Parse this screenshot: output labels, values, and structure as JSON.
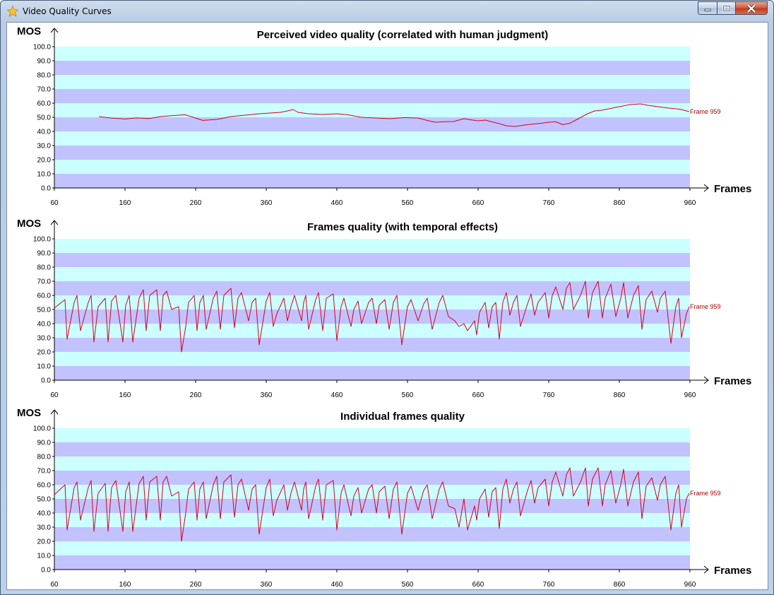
{
  "window": {
    "title": "Video Quality Curves",
    "icon": "star-icon"
  },
  "colors": {
    "line": "#d8001c",
    "band_light": "#ccffff",
    "band_dark": "#c2c2ff",
    "label": "#b00000"
  },
  "chart_data": [
    {
      "type": "line",
      "title": "Perceived video quality (correlated with human judgment)",
      "ylabel": "MOS",
      "xlabel": "Frames",
      "ylim": [
        0,
        100
      ],
      "xlim": [
        60,
        960
      ],
      "yticks": [
        "0.0",
        "10.0",
        "20.0",
        "30.0",
        "40.0",
        "50.0",
        "60.0",
        "70.0",
        "80.0",
        "90.0",
        "100.0"
      ],
      "xticks": [
        "60",
        "160",
        "260",
        "360",
        "460",
        "560",
        "660",
        "760",
        "860",
        "960"
      ],
      "end_label": "Frame 959",
      "series": [
        {
          "x": [
            123,
            140,
            160,
            175,
            195,
            210,
            230,
            245,
            260,
            270,
            290,
            310,
            330,
            350,
            365,
            380,
            390,
            398,
            405,
            420,
            440,
            460,
            475,
            495,
            515,
            535,
            555,
            575,
            590,
            600,
            610,
            625,
            640,
            650,
            660,
            670,
            690,
            700,
            712,
            730,
            750,
            760,
            770,
            780,
            790,
            800,
            815,
            825,
            835,
            850,
            860,
            875,
            890,
            900,
            915,
            930,
            945,
            959
          ],
          "y": [
            50.5,
            49.5,
            48.8,
            49.5,
            49.2,
            50.5,
            51.3,
            51.8,
            49.5,
            47.8,
            48.5,
            50.5,
            51.5,
            52.5,
            53.0,
            53.5,
            54.5,
            55.5,
            53.5,
            52.5,
            52.0,
            52.5,
            51.8,
            50.0,
            49.5,
            49.0,
            49.8,
            49.5,
            47.5,
            46.5,
            46.8,
            47.0,
            49.0,
            48.2,
            47.5,
            48.0,
            45.5,
            44.0,
            43.5,
            44.8,
            45.8,
            46.5,
            46.8,
            44.8,
            45.8,
            48.5,
            52.5,
            54.5,
            55.0,
            56.5,
            57.5,
            59.0,
            59.5,
            58.5,
            57.5,
            56.5,
            55.8,
            54.0
          ]
        }
      ]
    },
    {
      "type": "line",
      "title": "Frames quality (with temporal effects)",
      "ylabel": "MOS",
      "xlabel": "Frames",
      "ylim": [
        0,
        100
      ],
      "xlim": [
        60,
        960
      ],
      "yticks": [
        "0.0",
        "10.0",
        "20.0",
        "30.0",
        "40.0",
        "50.0",
        "60.0",
        "70.0",
        "80.0",
        "90.0",
        "100.0"
      ],
      "xticks": [
        "60",
        "160",
        "260",
        "360",
        "460",
        "560",
        "660",
        "760",
        "860",
        "960"
      ],
      "end_label": "Frame 959",
      "series": [
        {
          "x": [
            60,
            75,
            78,
            88,
            92,
            97,
            108,
            112,
            116,
            122,
            132,
            136,
            141,
            147,
            157,
            161,
            166,
            171,
            180,
            186,
            190,
            195,
            205,
            210,
            214,
            219,
            226,
            236,
            240,
            246,
            250,
            258,
            262,
            266,
            271,
            275,
            285,
            290,
            295,
            300,
            310,
            315,
            320,
            325,
            335,
            340,
            345,
            350,
            360,
            365,
            370,
            375,
            385,
            390,
            395,
            400,
            410,
            413,
            416,
            420,
            430,
            434,
            440,
            445,
            455,
            460,
            466,
            470,
            480,
            484,
            490,
            495,
            505,
            510,
            516,
            520,
            528,
            534,
            540,
            545,
            552,
            560,
            565,
            575,
            583,
            588,
            595,
            605,
            610,
            618,
            627,
            633,
            640,
            645,
            655,
            658,
            662,
            670,
            675,
            680,
            685,
            690,
            695,
            700,
            705,
            710,
            715,
            720,
            730,
            735,
            740,
            745,
            755,
            760,
            765,
            770,
            780,
            785,
            790,
            795,
            805,
            812,
            816,
            822,
            830,
            836,
            840,
            848,
            855,
            862,
            866,
            872,
            880,
            887,
            892,
            898,
            906,
            914,
            918,
            925,
            933,
            940,
            944,
            948,
            955,
            959
          ],
          "y": [
            51,
            57,
            29,
            55,
            60,
            35,
            55,
            60,
            27,
            52,
            58,
            27,
            56,
            60,
            27,
            53,
            60,
            27,
            58,
            64,
            35,
            60,
            64,
            35,
            60,
            63,
            50,
            52,
            20,
            38,
            55,
            60,
            35,
            55,
            60,
            36,
            58,
            63,
            36,
            60,
            65,
            37,
            58,
            62,
            42,
            55,
            58,
            25,
            56,
            62,
            38,
            47,
            58,
            42,
            52,
            60,
            42,
            55,
            60,
            36,
            57,
            62,
            35,
            58,
            61,
            28,
            52,
            58,
            38,
            50,
            56,
            40,
            55,
            58,
            40,
            53,
            57,
            36,
            55,
            60,
            25,
            52,
            57,
            42,
            54,
            58,
            36,
            55,
            60,
            45,
            42,
            38,
            40,
            35,
            42,
            32,
            48,
            55,
            37,
            52,
            55,
            29,
            55,
            62,
            46,
            55,
            60,
            38,
            54,
            61,
            46,
            55,
            62,
            44,
            60,
            66,
            50,
            65,
            69,
            50,
            60,
            70,
            44,
            62,
            70,
            44,
            58,
            68,
            45,
            58,
            69,
            44,
            60,
            67,
            36,
            57,
            63,
            48,
            58,
            63,
            26,
            52,
            58,
            30,
            47,
            52
          ]
        }
      ]
    },
    {
      "type": "line",
      "title": "Individual frames quality",
      "ylabel": "MOS",
      "xlabel": "Frames",
      "ylim": [
        0,
        100
      ],
      "xlim": [
        60,
        960
      ],
      "yticks": [
        "0.0",
        "10.0",
        "20.0",
        "30.0",
        "40.0",
        "50.0",
        "60.0",
        "70.0",
        "80.0",
        "90.0",
        "100.0"
      ],
      "xticks": [
        "60",
        "160",
        "260",
        "360",
        "460",
        "560",
        "660",
        "760",
        "860",
        "960"
      ],
      "end_label": "Frame 959",
      "series": [
        {
          "x": [
            60,
            75,
            78,
            88,
            92,
            97,
            108,
            112,
            116,
            122,
            132,
            136,
            141,
            147,
            157,
            161,
            166,
            171,
            180,
            186,
            190,
            195,
            205,
            210,
            214,
            219,
            226,
            236,
            240,
            246,
            250,
            258,
            262,
            266,
            271,
            275,
            285,
            290,
            295,
            300,
            310,
            315,
            320,
            325,
            335,
            340,
            345,
            350,
            360,
            365,
            370,
            375,
            385,
            390,
            395,
            400,
            410,
            413,
            416,
            420,
            430,
            434,
            440,
            445,
            455,
            460,
            466,
            470,
            480,
            484,
            490,
            495,
            505,
            510,
            516,
            520,
            528,
            534,
            540,
            545,
            552,
            560,
            565,
            575,
            583,
            588,
            595,
            605,
            610,
            618,
            627,
            633,
            640,
            645,
            655,
            658,
            662,
            670,
            675,
            680,
            685,
            690,
            695,
            700,
            705,
            710,
            715,
            720,
            730,
            735,
            740,
            745,
            755,
            760,
            765,
            770,
            780,
            785,
            790,
            795,
            805,
            812,
            816,
            822,
            830,
            836,
            840,
            848,
            855,
            862,
            866,
            872,
            880,
            887,
            892,
            898,
            906,
            914,
            918,
            925,
            933,
            940,
            944,
            948,
            955,
            959
          ],
          "y": [
            53,
            60,
            28,
            58,
            62,
            35,
            58,
            63,
            27,
            54,
            61,
            27,
            58,
            63,
            27,
            55,
            62,
            27,
            61,
            66,
            35,
            62,
            66,
            35,
            62,
            66,
            52,
            55,
            20,
            40,
            57,
            62,
            35,
            57,
            62,
            36,
            60,
            66,
            36,
            62,
            67,
            37,
            60,
            64,
            42,
            57,
            60,
            25,
            58,
            64,
            38,
            49,
            60,
            42,
            54,
            62,
            42,
            57,
            62,
            36,
            59,
            64,
            35,
            60,
            63,
            28,
            54,
            60,
            38,
            52,
            58,
            40,
            57,
            60,
            40,
            55,
            59,
            36,
            57,
            62,
            25,
            54,
            59,
            42,
            56,
            60,
            36,
            57,
            62,
            45,
            43,
            30,
            50,
            28,
            45,
            35,
            50,
            57,
            37,
            55,
            58,
            29,
            57,
            64,
            47,
            57,
            62,
            38,
            56,
            63,
            47,
            58,
            64,
            45,
            62,
            69,
            52,
            67,
            72,
            52,
            62,
            72,
            45,
            64,
            72,
            45,
            60,
            70,
            47,
            60,
            71,
            45,
            62,
            69,
            36,
            59,
            65,
            49,
            60,
            66,
            28,
            54,
            60,
            30,
            50,
            54
          ]
        }
      ]
    }
  ]
}
